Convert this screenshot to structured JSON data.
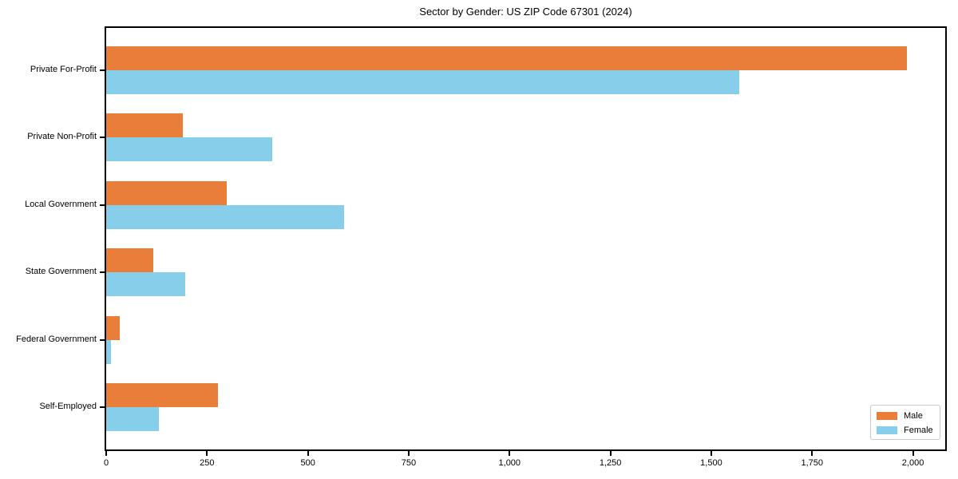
{
  "chart_data": {
    "type": "bar",
    "orientation": "horizontal",
    "title": "Sector by Gender: US ZIP Code 67301 (2024)",
    "xlabel": "",
    "ylabel": "",
    "grid": false,
    "legend_position": "lower right",
    "xlim": [
      0,
      2080
    ],
    "categories": [
      "Private For-Profit",
      "Private Non-Profit",
      "Local Government",
      "State Government",
      "Federal Government",
      "Self-Employed"
    ],
    "series": [
      {
        "name": "Male",
        "color": "#e97d3a",
        "values": [
          1985,
          190,
          298,
          117,
          33,
          277
        ]
      },
      {
        "name": "Female",
        "color": "#87ceeb",
        "values": [
          1570,
          412,
          590,
          196,
          12,
          130
        ]
      }
    ],
    "xticks": [
      {
        "value": 0,
        "label": "0"
      },
      {
        "value": 250,
        "label": "250"
      },
      {
        "value": 500,
        "label": "500"
      },
      {
        "value": 750,
        "label": "750"
      },
      {
        "value": 1000,
        "label": "1,000"
      },
      {
        "value": 1250,
        "label": "1,250"
      },
      {
        "value": 1500,
        "label": "1,500"
      },
      {
        "value": 1750,
        "label": "1,750"
      },
      {
        "value": 2000,
        "label": "2,000"
      }
    ],
    "colors": {
      "axis": "#000000",
      "background": "#ffffff",
      "legend_border": "#c9c9c9"
    }
  }
}
